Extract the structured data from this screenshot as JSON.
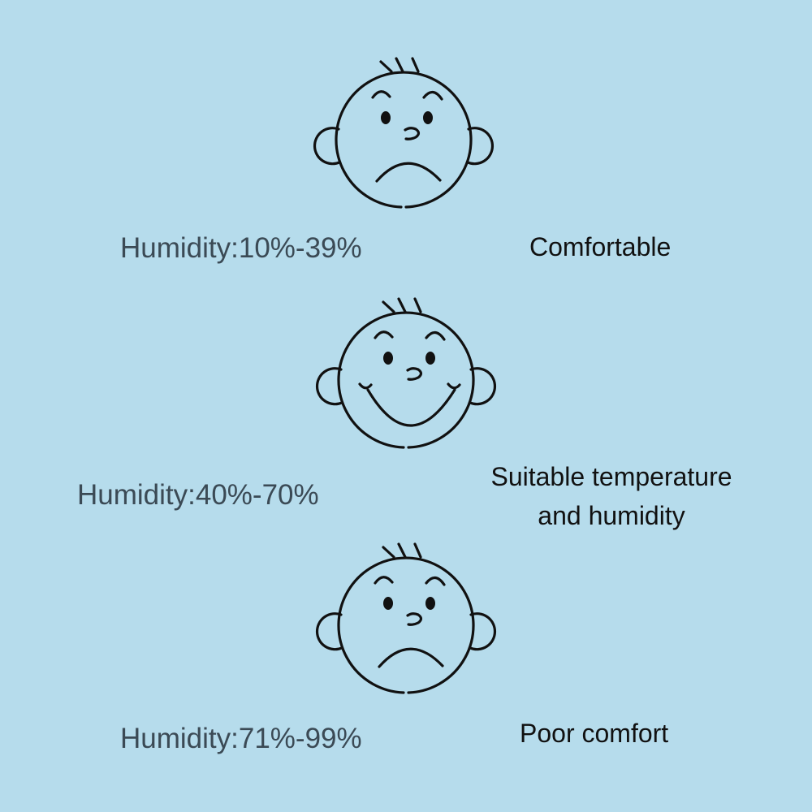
{
  "colors": {
    "background": "#b6dcec",
    "humidity_text": "#3b4a55",
    "description_text": "#111111",
    "line": "#111111"
  },
  "rows": [
    {
      "humidity": "Humidity:10%-39%",
      "description": [
        "Comfortable"
      ],
      "face": "sad-face-icon"
    },
    {
      "humidity": "Humidity:40%-70%",
      "description": [
        "Suitable temperature",
        "and humidity"
      ],
      "face": "happy-face-icon"
    },
    {
      "humidity": "Humidity:71%-99%",
      "description": [
        "Poor comfort"
      ],
      "face": "sad-face-icon"
    }
  ]
}
